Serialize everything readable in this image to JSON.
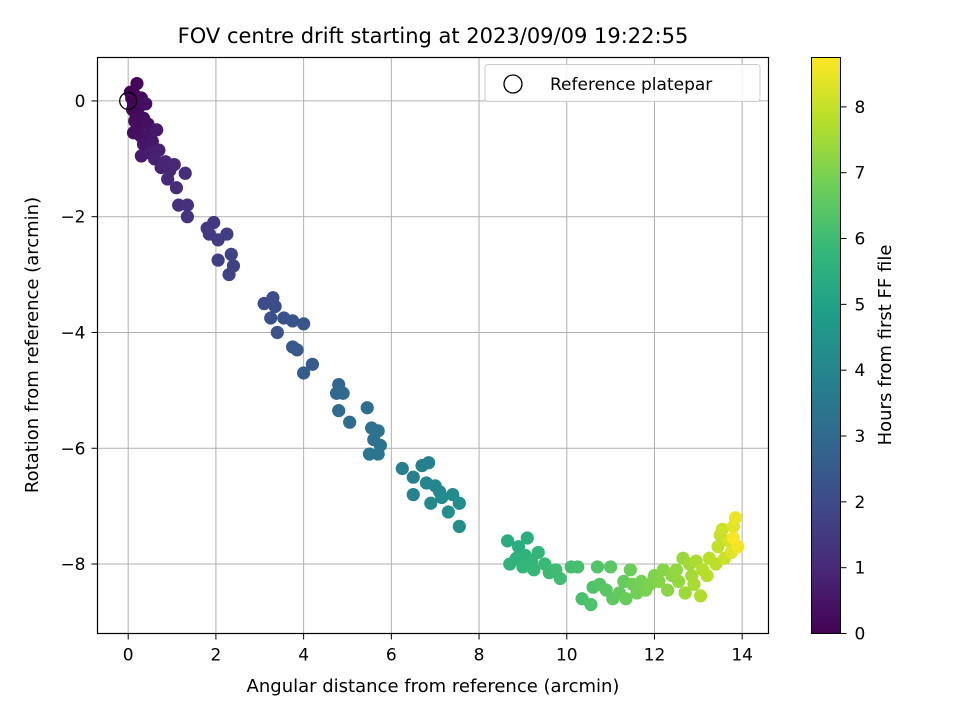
{
  "chart_data": {
    "type": "scatter",
    "title": "FOV centre drift starting at 2023/09/09 19:22:55",
    "xlabel": "Angular distance from reference (arcmin)",
    "ylabel": "Rotation from reference (arcmin)",
    "xlim": [
      -0.7,
      14.6
    ],
    "ylim": [
      -9.2,
      0.75
    ],
    "xticks": [
      0,
      2,
      4,
      6,
      8,
      10,
      12,
      14
    ],
    "yticks": [
      0,
      -2,
      -4,
      -6,
      -8
    ],
    "grid": true,
    "legend": {
      "position": "top-right",
      "label": "Reference platepar",
      "marker": "open-circle"
    },
    "reference_point": {
      "x": 0,
      "y": 0
    },
    "colorbar": {
      "label": "Hours from first FF file",
      "min": 0,
      "max": 8.75,
      "ticks": [
        0,
        1,
        2,
        3,
        4,
        5,
        6,
        7,
        8
      ],
      "colormap": "viridis",
      "stops": [
        "#440154",
        "#482878",
        "#3e4989",
        "#31688e",
        "#26828e",
        "#1f9e89",
        "#35b779",
        "#6ece58",
        "#b5de2b",
        "#fde725"
      ]
    },
    "points": [
      {
        "x": 0.05,
        "y": 0.15,
        "h": 0.02
      },
      {
        "x": 0.08,
        "y": 0.05,
        "h": 0.05
      },
      {
        "x": 0.12,
        "y": -0.05,
        "h": 0.08
      },
      {
        "x": 0.15,
        "y": 0.1,
        "h": 0.1
      },
      {
        "x": 0.2,
        "y": 0.3,
        "h": 0.13
      },
      {
        "x": 0.1,
        "y": -0.15,
        "h": 0.15
      },
      {
        "x": 0.18,
        "y": -0.25,
        "h": 0.18
      },
      {
        "x": 0.25,
        "y": -0.1,
        "h": 0.2
      },
      {
        "x": 0.3,
        "y": 0.05,
        "h": 0.22
      },
      {
        "x": 0.15,
        "y": -0.35,
        "h": 0.25
      },
      {
        "x": 0.22,
        "y": -0.45,
        "h": 0.28
      },
      {
        "x": 0.35,
        "y": -0.3,
        "h": 0.3
      },
      {
        "x": 0.4,
        "y": -0.05,
        "h": 0.32
      },
      {
        "x": 0.12,
        "y": -0.55,
        "h": 0.35
      },
      {
        "x": 0.28,
        "y": -0.6,
        "h": 0.38
      },
      {
        "x": 0.45,
        "y": -0.4,
        "h": 0.4
      },
      {
        "x": 0.5,
        "y": -0.55,
        "h": 0.45
      },
      {
        "x": 0.35,
        "y": -0.75,
        "h": 0.5
      },
      {
        "x": 0.55,
        "y": -0.7,
        "h": 0.55
      },
      {
        "x": 0.65,
        "y": -0.5,
        "h": 0.6
      },
      {
        "x": 0.3,
        "y": -0.95,
        "h": 0.65
      },
      {
        "x": 0.5,
        "y": -0.9,
        "h": 0.7
      },
      {
        "x": 0.7,
        "y": -0.85,
        "h": 0.75
      },
      {
        "x": 0.6,
        "y": -1.0,
        "h": 0.8
      },
      {
        "x": 0.75,
        "y": -1.15,
        "h": 0.85
      },
      {
        "x": 0.85,
        "y": -1.05,
        "h": 0.9
      },
      {
        "x": 0.95,
        "y": -1.2,
        "h": 0.95
      },
      {
        "x": 1.05,
        "y": -1.1,
        "h": 1.0
      },
      {
        "x": 0.9,
        "y": -1.35,
        "h": 1.05
      },
      {
        "x": 1.1,
        "y": -1.5,
        "h": 1.1
      },
      {
        "x": 1.3,
        "y": -1.25,
        "h": 1.15
      },
      {
        "x": 1.15,
        "y": -1.8,
        "h": 1.2
      },
      {
        "x": 1.35,
        "y": -1.8,
        "h": 1.25
      },
      {
        "x": 1.35,
        "y": -2.0,
        "h": 1.3
      },
      {
        "x": 1.8,
        "y": -2.2,
        "h": 1.4
      },
      {
        "x": 1.95,
        "y": -2.1,
        "h": 1.45
      },
      {
        "x": 1.85,
        "y": -2.3,
        "h": 1.5
      },
      {
        "x": 2.05,
        "y": -2.4,
        "h": 1.55
      },
      {
        "x": 2.25,
        "y": -2.3,
        "h": 1.6
      },
      {
        "x": 2.05,
        "y": -2.75,
        "h": 1.65
      },
      {
        "x": 2.35,
        "y": -2.65,
        "h": 1.7
      },
      {
        "x": 2.4,
        "y": -2.85,
        "h": 1.75
      },
      {
        "x": 2.3,
        "y": -3.0,
        "h": 1.8
      },
      {
        "x": 3.1,
        "y": -3.5,
        "h": 2.0
      },
      {
        "x": 3.3,
        "y": -3.4,
        "h": 2.05
      },
      {
        "x": 3.35,
        "y": -3.55,
        "h": 2.1
      },
      {
        "x": 3.25,
        "y": -3.75,
        "h": 2.15
      },
      {
        "x": 3.55,
        "y": -3.75,
        "h": 2.2
      },
      {
        "x": 3.4,
        "y": -4.0,
        "h": 2.25
      },
      {
        "x": 3.75,
        "y": -3.8,
        "h": 2.3
      },
      {
        "x": 4.0,
        "y": -3.85,
        "h": 2.35
      },
      {
        "x": 3.75,
        "y": -4.25,
        "h": 2.4
      },
      {
        "x": 3.85,
        "y": -4.3,
        "h": 2.45
      },
      {
        "x": 4.2,
        "y": -4.55,
        "h": 2.5
      },
      {
        "x": 4.0,
        "y": -4.7,
        "h": 2.55
      },
      {
        "x": 4.8,
        "y": -4.9,
        "h": 2.9
      },
      {
        "x": 4.75,
        "y": -5.05,
        "h": 2.95
      },
      {
        "x": 4.9,
        "y": -5.05,
        "h": 3.0
      },
      {
        "x": 4.8,
        "y": -5.35,
        "h": 3.05
      },
      {
        "x": 5.05,
        "y": -5.55,
        "h": 3.1
      },
      {
        "x": 5.45,
        "y": -5.3,
        "h": 3.15
      },
      {
        "x": 5.55,
        "y": -5.65,
        "h": 3.2
      },
      {
        "x": 5.6,
        "y": -5.85,
        "h": 3.25
      },
      {
        "x": 5.7,
        "y": -5.7,
        "h": 3.3
      },
      {
        "x": 5.75,
        "y": -5.95,
        "h": 3.35
      },
      {
        "x": 5.5,
        "y": -6.1,
        "h": 3.4
      },
      {
        "x": 5.7,
        "y": -6.1,
        "h": 3.45
      },
      {
        "x": 6.25,
        "y": -6.35,
        "h": 3.7
      },
      {
        "x": 6.5,
        "y": -6.5,
        "h": 3.75
      },
      {
        "x": 6.7,
        "y": -6.3,
        "h": 3.8
      },
      {
        "x": 6.85,
        "y": -6.25,
        "h": 3.85
      },
      {
        "x": 6.5,
        "y": -6.8,
        "h": 3.9
      },
      {
        "x": 6.8,
        "y": -6.6,
        "h": 3.95
      },
      {
        "x": 7.0,
        "y": -6.65,
        "h": 4.0
      },
      {
        "x": 7.1,
        "y": -6.75,
        "h": 4.05
      },
      {
        "x": 6.9,
        "y": -6.95,
        "h": 4.1
      },
      {
        "x": 7.15,
        "y": -6.85,
        "h": 4.15
      },
      {
        "x": 7.4,
        "y": -6.8,
        "h": 4.2
      },
      {
        "x": 7.55,
        "y": -6.95,
        "h": 4.25
      },
      {
        "x": 7.3,
        "y": -7.1,
        "h": 4.3
      },
      {
        "x": 7.55,
        "y": -7.35,
        "h": 4.35
      },
      {
        "x": 8.65,
        "y": -7.6,
        "h": 5.4
      },
      {
        "x": 8.9,
        "y": -7.7,
        "h": 5.45
      },
      {
        "x": 9.1,
        "y": -7.55,
        "h": 5.5
      },
      {
        "x": 8.85,
        "y": -7.9,
        "h": 5.55
      },
      {
        "x": 8.7,
        "y": -8.0,
        "h": 5.6
      },
      {
        "x": 9.05,
        "y": -7.85,
        "h": 5.65
      },
      {
        "x": 9.2,
        "y": -7.95,
        "h": 5.7
      },
      {
        "x": 9.35,
        "y": -7.8,
        "h": 5.75
      },
      {
        "x": 9.0,
        "y": -8.05,
        "h": 5.8
      },
      {
        "x": 9.25,
        "y": -8.1,
        "h": 5.85
      },
      {
        "x": 9.5,
        "y": -8.0,
        "h": 5.9
      },
      {
        "x": 9.6,
        "y": -8.15,
        "h": 5.95
      },
      {
        "x": 9.75,
        "y": -8.1,
        "h": 6.0
      },
      {
        "x": 9.85,
        "y": -8.25,
        "h": 6.05
      },
      {
        "x": 10.1,
        "y": -8.05,
        "h": 6.1
      },
      {
        "x": 10.25,
        "y": -8.05,
        "h": 6.15
      },
      {
        "x": 10.35,
        "y": -8.6,
        "h": 6.2
      },
      {
        "x": 10.55,
        "y": -8.7,
        "h": 6.25
      },
      {
        "x": 10.6,
        "y": -8.4,
        "h": 6.3
      },
      {
        "x": 10.7,
        "y": -8.05,
        "h": 6.35
      },
      {
        "x": 10.75,
        "y": -8.35,
        "h": 6.4
      },
      {
        "x": 10.9,
        "y": -8.45,
        "h": 6.45
      },
      {
        "x": 11.0,
        "y": -8.05,
        "h": 6.5
      },
      {
        "x": 11.05,
        "y": -8.6,
        "h": 6.55
      },
      {
        "x": 11.2,
        "y": -8.5,
        "h": 6.6
      },
      {
        "x": 11.3,
        "y": -8.3,
        "h": 6.65
      },
      {
        "x": 11.35,
        "y": -8.6,
        "h": 6.7
      },
      {
        "x": 11.45,
        "y": -8.1,
        "h": 6.75
      },
      {
        "x": 11.5,
        "y": -8.35,
        "h": 6.8
      },
      {
        "x": 11.6,
        "y": -8.5,
        "h": 6.85
      },
      {
        "x": 11.7,
        "y": -8.3,
        "h": 6.9
      },
      {
        "x": 11.8,
        "y": -8.45,
        "h": 6.95
      },
      {
        "x": 11.9,
        "y": -8.35,
        "h": 7.0
      },
      {
        "x": 12.0,
        "y": -8.2,
        "h": 7.05
      },
      {
        "x": 12.1,
        "y": -8.3,
        "h": 7.1
      },
      {
        "x": 12.2,
        "y": -8.1,
        "h": 7.15
      },
      {
        "x": 12.3,
        "y": -8.45,
        "h": 7.2
      },
      {
        "x": 12.4,
        "y": -8.2,
        "h": 7.25
      },
      {
        "x": 12.5,
        "y": -8.1,
        "h": 7.3
      },
      {
        "x": 12.55,
        "y": -8.3,
        "h": 7.35
      },
      {
        "x": 12.65,
        "y": -7.9,
        "h": 7.4
      },
      {
        "x": 12.7,
        "y": -8.5,
        "h": 7.45
      },
      {
        "x": 12.8,
        "y": -8.0,
        "h": 7.5
      },
      {
        "x": 12.85,
        "y": -8.2,
        "h": 7.55
      },
      {
        "x": 12.9,
        "y": -8.35,
        "h": 7.6
      },
      {
        "x": 12.95,
        "y": -7.95,
        "h": 7.65
      },
      {
        "x": 13.05,
        "y": -8.55,
        "h": 7.7
      },
      {
        "x": 13.1,
        "y": -8.1,
        "h": 7.75
      },
      {
        "x": 13.2,
        "y": -8.2,
        "h": 7.8
      },
      {
        "x": 13.25,
        "y": -7.9,
        "h": 7.85
      },
      {
        "x": 13.4,
        "y": -8.0,
        "h": 7.9
      },
      {
        "x": 13.45,
        "y": -7.7,
        "h": 7.95
      },
      {
        "x": 13.5,
        "y": -7.5,
        "h": 8.0
      },
      {
        "x": 13.6,
        "y": -7.9,
        "h": 8.05
      },
      {
        "x": 13.55,
        "y": -7.4,
        "h": 8.1
      },
      {
        "x": 13.7,
        "y": -7.6,
        "h": 8.2
      },
      {
        "x": 13.75,
        "y": -7.8,
        "h": 8.3
      },
      {
        "x": 13.8,
        "y": -7.35,
        "h": 8.4
      },
      {
        "x": 13.85,
        "y": -7.2,
        "h": 8.5
      },
      {
        "x": 13.9,
        "y": -7.7,
        "h": 8.6
      },
      {
        "x": 13.8,
        "y": -7.55,
        "h": 8.7
      }
    ]
  }
}
